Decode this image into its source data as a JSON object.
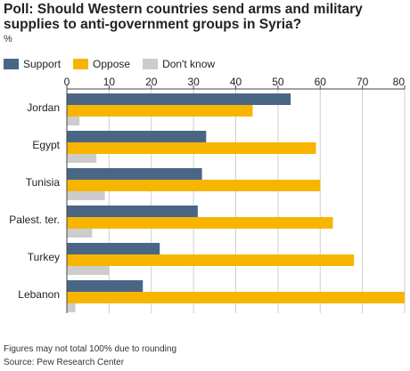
{
  "title": "Poll: Should Western countries send arms and military supplies to anti-government groups in Syria?",
  "unit": "%",
  "footnote": "Figures may not total 100% due to rounding",
  "source": "Source: Pew Research Center",
  "colors": {
    "support": "#4a6685",
    "oppose": "#f7b500",
    "dont_know": "#cccccc",
    "grid": "#cfcfcf",
    "axis": "#444444"
  },
  "legend": [
    {
      "label": "Support",
      "color": "#4a6685"
    },
    {
      "label": "Oppose",
      "color": "#f7b500"
    },
    {
      "label": "Don't know",
      "color": "#cccccc"
    }
  ],
  "chart_data": {
    "type": "bar",
    "orientation": "horizontal",
    "categories": [
      "Jordan",
      "Egypt",
      "Tunisia",
      "Palest. ter.",
      "Turkey",
      "Lebanon"
    ],
    "series": [
      {
        "name": "Support",
        "values": [
          53,
          33,
          32,
          31,
          22,
          18
        ]
      },
      {
        "name": "Oppose",
        "values": [
          44,
          59,
          60,
          63,
          68,
          80
        ]
      },
      {
        "name": "Don't know",
        "values": [
          3,
          7,
          9,
          6,
          10,
          2
        ]
      }
    ],
    "xlim": [
      0,
      80
    ],
    "xticks": [
      "0",
      "10",
      "20",
      "30",
      "40",
      "50",
      "60",
      "70",
      "80"
    ],
    "grid": true,
    "legend_position": "top-left"
  }
}
